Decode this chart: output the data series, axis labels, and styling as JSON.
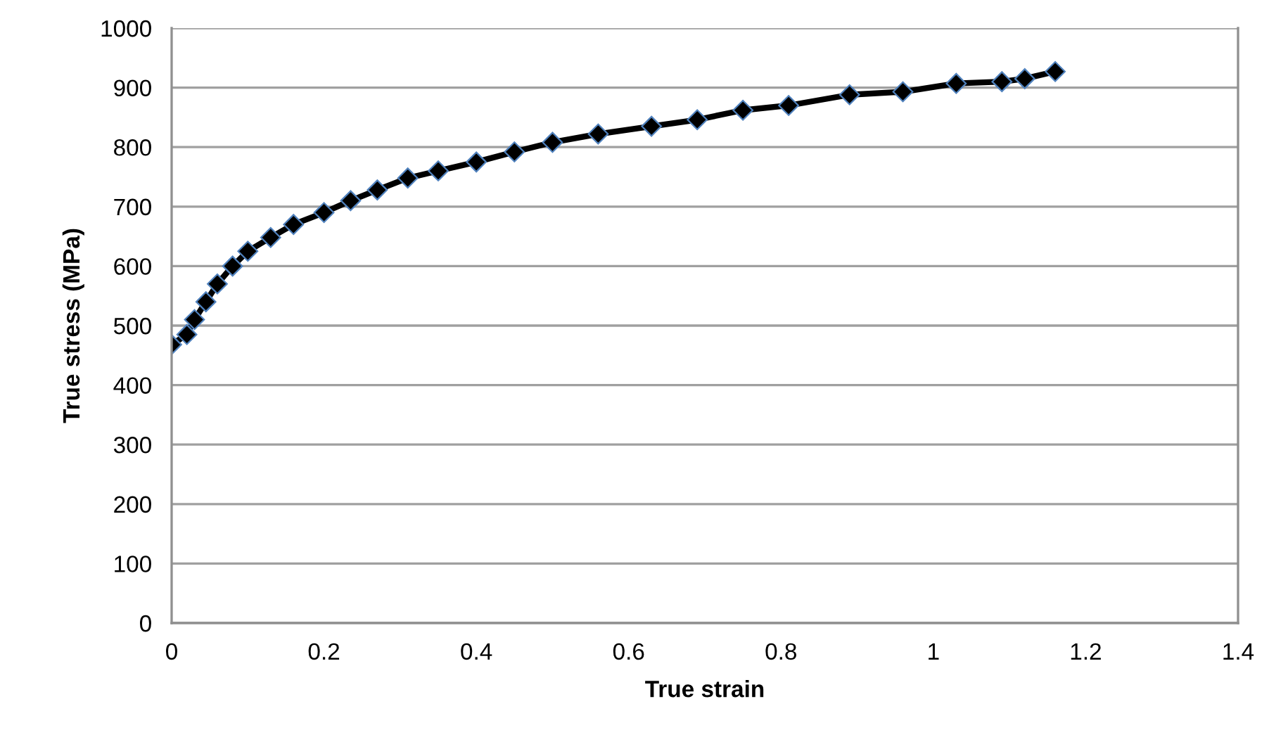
{
  "chart_data": {
    "type": "line",
    "xlabel": "True strain",
    "ylabel": "True stress (MPa)",
    "x": [
      0,
      0.02,
      0.03,
      0.045,
      0.06,
      0.08,
      0.1,
      0.13,
      0.16,
      0.2,
      0.235,
      0.27,
      0.31,
      0.35,
      0.4,
      0.45,
      0.5,
      0.56,
      0.63,
      0.69,
      0.75,
      0.81,
      0.89,
      0.96,
      1.03,
      1.09,
      1.12,
      1.16
    ],
    "series": [
      {
        "color": "#000000",
        "values": [
          468,
          485,
          510,
          540,
          570,
          600,
          625,
          648,
          670,
          690,
          710,
          728,
          748,
          760,
          775,
          792,
          808,
          822,
          835,
          846,
          862,
          870,
          888,
          893,
          907,
          910,
          915,
          927
        ]
      }
    ],
    "xlim": [
      0,
      1.4
    ],
    "xticks": [
      0,
      0.2,
      0.4,
      0.6,
      0.8,
      1,
      1.2,
      1.4
    ],
    "ylim": [
      0,
      1000
    ],
    "yticks": [
      0,
      100,
      200,
      300,
      400,
      500,
      600,
      700,
      800,
      900,
      1000
    ],
    "grid": "y",
    "marker": "diamond",
    "line_style": "solid",
    "legend": false
  }
}
